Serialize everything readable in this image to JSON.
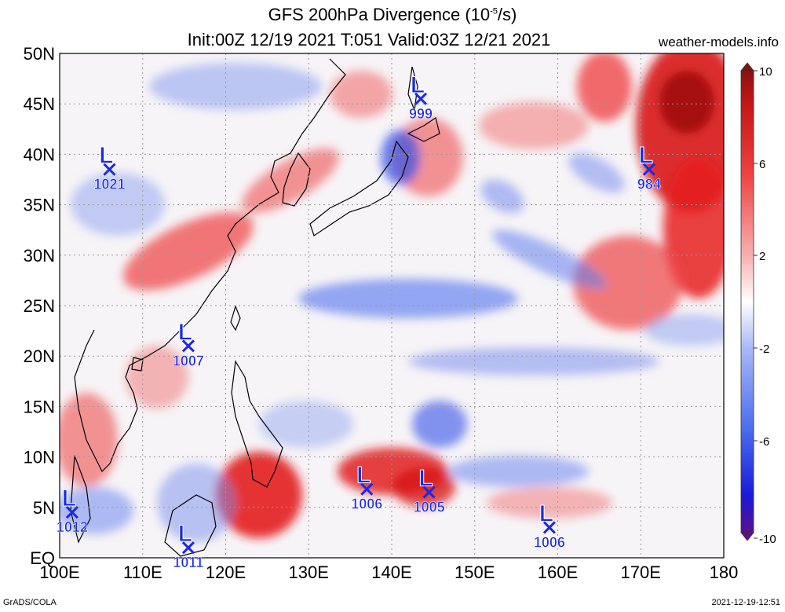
{
  "title": {
    "line1_prefix": "GFS 200hPa Divergence (10",
    "line1_exp": "-5",
    "line1_suffix": "/s)",
    "line2": "Init:00Z 12/19 2021 T:051 Valid:03Z 12/21 2021"
  },
  "site": "weather-models.info",
  "footer": {
    "left": "GrADS/COLA",
    "right": "2021-12-19-12:51"
  },
  "axes": {
    "lat_labels": [
      "50N",
      "45N",
      "40N",
      "35N",
      "30N",
      "25N",
      "20N",
      "15N",
      "10N",
      "5N",
      "EQ"
    ],
    "lon_labels": [
      "100E",
      "110E",
      "120E",
      "130E",
      "140E",
      "150E",
      "160E",
      "170E",
      "180"
    ]
  },
  "colorbar": {
    "labels": [
      "10",
      "6",
      "2",
      "-2",
      "-6",
      "-10"
    ],
    "colors": [
      "#5a1090",
      "#1a1ad8",
      "#4a6aee",
      "#a9b9f5",
      "#ffffff",
      "#f6b0b0",
      "#ee4040",
      "#c81818",
      "#8a1010"
    ]
  },
  "pressure_lows": [
    {
      "label": "L",
      "value": "999",
      "lon": 143.5,
      "lat": 45.5
    },
    {
      "label": "L",
      "value": "1021",
      "lon": 106.0,
      "lat": 38.5
    },
    {
      "label": "L",
      "value": "984",
      "lon": 171.0,
      "lat": 38.5
    },
    {
      "label": "L",
      "value": "1007",
      "lon": 115.5,
      "lat": 21.0
    },
    {
      "label": "L",
      "value": "1006",
      "lon": 137.0,
      "lat": 6.8
    },
    {
      "label": "L",
      "value": "1005",
      "lon": 144.5,
      "lat": 6.5
    },
    {
      "label": "L",
      "value": "1012",
      "lon": 101.5,
      "lat": 4.5
    },
    {
      "label": "L",
      "value": "1006",
      "lon": 159.0,
      "lat": 3.0
    },
    {
      "label": "L",
      "value": "1011",
      "lon": 115.5,
      "lat": 1.0
    }
  ],
  "colors": {
    "low_marker": "#1a28e8",
    "grid": "#999999"
  }
}
